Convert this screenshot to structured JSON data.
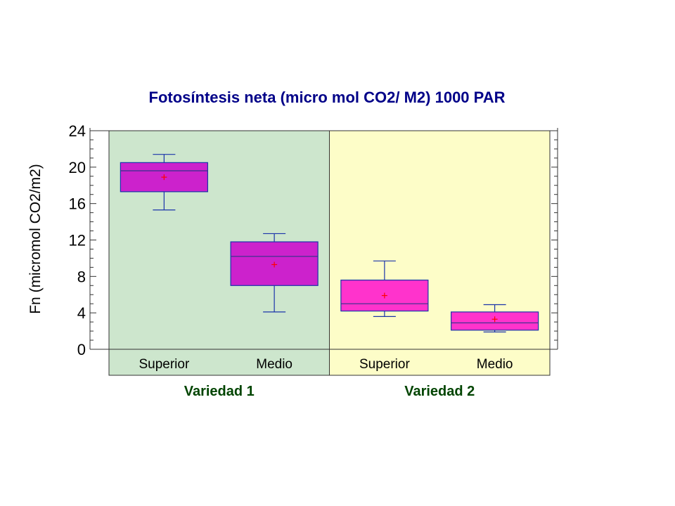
{
  "chart_data": {
    "type": "box",
    "title": "Fotosíntesis neta (micro mol CO2/ M2) 1000 PAR",
    "ylabel": "Fn (micromol CO2/m2)",
    "xlabel": "",
    "ylim": [
      0,
      24
    ],
    "yticks": [
      0,
      4,
      8,
      12,
      16,
      20,
      24
    ],
    "groups": [
      {
        "name": "Variedad 1",
        "background": "#cde6cd"
      },
      {
        "name": "Variedad 2",
        "background": "#fdfdc8"
      }
    ],
    "boxes": [
      {
        "group": 0,
        "category": "Superior",
        "min": 15.3,
        "q1": 17.3,
        "median": 19.6,
        "q3": 20.5,
        "max": 21.4,
        "mean": 18.9,
        "color": "#cc22cc"
      },
      {
        "group": 0,
        "category": "Medio",
        "min": 4.1,
        "q1": 7.0,
        "median": 10.2,
        "q3": 11.8,
        "max": 12.7,
        "mean": 9.3,
        "color": "#cc22cc"
      },
      {
        "group": 1,
        "category": "Superior",
        "min": 3.6,
        "q1": 4.2,
        "median": 5.0,
        "q3": 7.6,
        "max": 9.7,
        "mean": 5.9,
        "color": "#ff33cc"
      },
      {
        "group": 1,
        "category": "Medio",
        "min": 1.9,
        "q1": 2.1,
        "median": 2.9,
        "q3": 4.1,
        "max": 4.9,
        "mean": 3.3,
        "color": "#ff33cc"
      }
    ],
    "colors": {
      "title": "#000088",
      "group_label": "#004400",
      "whisker": "#1a33aa",
      "mean_marker": "#ff0000",
      "median": "#333388"
    },
    "grid": false,
    "legend": "none"
  }
}
